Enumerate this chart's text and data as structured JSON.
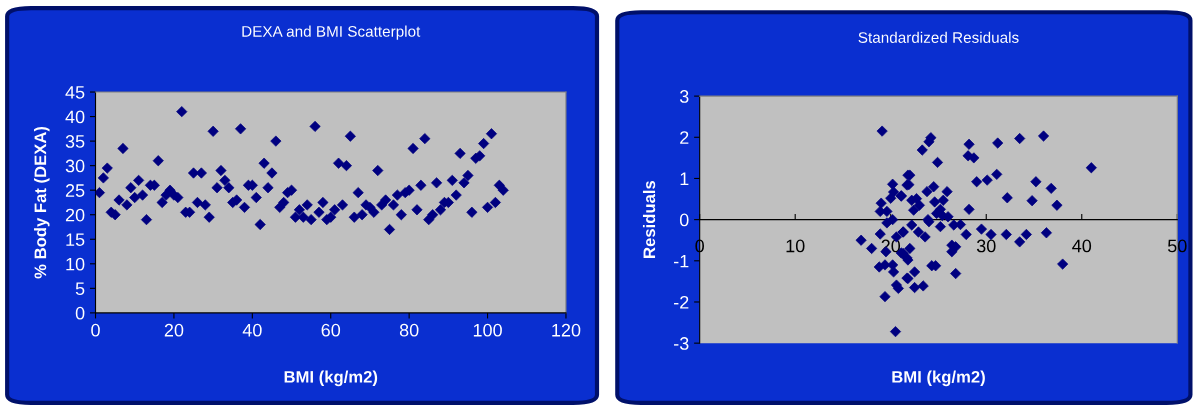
{
  "chart_data": [
    {
      "type": "scatter",
      "title": "DEXA and BMI Scatterplot",
      "xlabel": "BMI (kg/m2)",
      "ylabel": "% Body Fat (DEXA)",
      "xlim": [
        0,
        120
      ],
      "xticks": [
        0,
        20,
        40,
        60,
        80,
        100,
        120
      ],
      "ylim": [
        0,
        45
      ],
      "yticks": [
        0,
        5,
        10,
        15,
        20,
        25,
        30,
        35,
        40,
        45
      ],
      "marker": "diamond",
      "grid": false,
      "legend": false,
      "series": [
        {
          "color": "#000080",
          "x": [
            1,
            2,
            3,
            4,
            5,
            6,
            7,
            8,
            9,
            10,
            11,
            12,
            13,
            14,
            15,
            16,
            17,
            18,
            19,
            20,
            21,
            22,
            23,
            24,
            25,
            26,
            27,
            28,
            29,
            30,
            31,
            32,
            33,
            34,
            35,
            36,
            37,
            38,
            39,
            40,
            41,
            42,
            43,
            44,
            45,
            46,
            47,
            48,
            49,
            50,
            51,
            52,
            53,
            54,
            55,
            56,
            57,
            58,
            59,
            60,
            61,
            62,
            63,
            64,
            65,
            66,
            67,
            68,
            69,
            70,
            71,
            72,
            73,
            74,
            75,
            76,
            77,
            78,
            79,
            80,
            81,
            82,
            83,
            84,
            85,
            86,
            87,
            88,
            89,
            90,
            91,
            92,
            93,
            94,
            95,
            96,
            97,
            98,
            99,
            100,
            101,
            102,
            103,
            104
          ],
          "values": [
            24.5,
            27.5,
            29.5,
            20.5,
            20,
            23,
            33.5,
            22,
            25.5,
            23.5,
            27,
            24,
            19,
            26,
            26,
            31,
            22.5,
            24,
            25,
            24,
            23.5,
            41,
            20.5,
            20.5,
            28.5,
            22.5,
            28.5,
            22,
            19.5,
            37,
            25.5,
            29,
            27,
            25.5,
            22.5,
            23,
            37.5,
            21.5,
            26,
            26,
            23.5,
            18,
            30.5,
            25.5,
            28.5,
            35,
            21.5,
            22.5,
            24.5,
            25,
            19.5,
            21,
            19.5,
            22,
            19,
            38,
            20.5,
            22.5,
            19,
            19.5,
            21,
            30.5,
            22,
            30,
            36,
            19.5,
            24.5,
            20,
            22,
            21.5,
            20.5,
            29,
            22,
            23,
            17,
            22,
            24,
            20,
            24.5,
            25,
            33.5,
            21,
            26,
            35.5,
            19,
            20,
            26.5,
            21,
            22.5,
            22.5,
            27,
            24,
            32.5,
            26.5,
            28,
            20.5,
            31.5,
            32,
            34.5,
            21.5,
            36.5,
            22.5,
            26,
            25
          ]
        }
      ]
    },
    {
      "type": "scatter",
      "title": "Standardized Residuals",
      "xlabel": "BMI (kg/m2)",
      "ylabel": "Residuals",
      "xlim": [
        0,
        50
      ],
      "xticks": [
        0,
        10,
        20,
        30,
        40,
        50
      ],
      "ylim": [
        -3,
        3
      ],
      "yticks": [
        -3,
        -2,
        -1,
        0,
        1,
        2,
        3
      ],
      "marker": "diamond",
      "grid": false,
      "legend": false,
      "series": [
        {
          "color": "#000080",
          "x": [
            19.1,
            16.9,
            18.0,
            18.9,
            19.6,
            19.0,
            20.2,
            20.0,
            20.3,
            21.1,
            21.8,
            21.7,
            20.2,
            19.6,
            18.9,
            19.5,
            20.6,
            21.3,
            21.1,
            21.7,
            18.8,
            19.4,
            20.2,
            20.3,
            21.7,
            20.6,
            20.8,
            19.4,
            20.5,
            24.2,
            24.0,
            23.3,
            24.9,
            22.0,
            21.9,
            21.1,
            24.5,
            23.8,
            22.7,
            22.2,
            25.5,
            25.9,
            24.6,
            25.2,
            22.4,
            23.9,
            22.2,
            26.0,
            25.2,
            26.6,
            27.3,
            21.3,
            22.9,
            23.6,
            22.0,
            21.3,
            21.8,
            26.4,
            26.8,
            26.4,
            24.3,
            24.7,
            22.5,
            21.8,
            22.5,
            23.4,
            26.8,
            28.2,
            28.1,
            28.7,
            31.2,
            33.5,
            36.0,
            41.0,
            29.0,
            30.1,
            31.1,
            35.2,
            36.8,
            32.2,
            34.8,
            37.4,
            28.2,
            27.9,
            29.5,
            30.5,
            32.1,
            33.5,
            34.2,
            36.3,
            38.0,
            23.0,
            24.0,
            25.4,
            24.8
          ],
          "values": [
            2.15,
            -0.5,
            -0.7,
            0.2,
            0.2,
            0.4,
            0.86,
            0.52,
            0.67,
            0.58,
            1.08,
            0.84,
            0,
            -0.08,
            -0.35,
            -0.78,
            -0.42,
            -0.3,
            -0.81,
            -0.93,
            -1.15,
            -1.1,
            -1.1,
            -1.27,
            -1.42,
            -1.59,
            -1.67,
            -1.87,
            -2.72,
            1.99,
            1.89,
            1.69,
            1.39,
            1.08,
            0.85,
            0.57,
            0.8,
            0.68,
            0.51,
            0.47,
            0.47,
            0.68,
            0.43,
            0.25,
            0.23,
            0,
            -0.13,
            0.07,
            -0.17,
            -0.13,
            -0.12,
            -0.3,
            -0.3,
            -0.42,
            -0.7,
            -0.82,
            -0.98,
            -0.62,
            -0.66,
            -0.78,
            -1.12,
            -1.12,
            -1.27,
            -1.43,
            -1.65,
            -1.61,
            -1.31,
            1.83,
            1.55,
            1.5,
            1.86,
            1.97,
            2.03,
            1.26,
            0.92,
            0.96,
            1.1,
            0.92,
            0.76,
            0.53,
            0.46,
            0.35,
            0.25,
            -0.36,
            -0.23,
            -0.36,
            -0.36,
            -0.54,
            -0.36,
            -0.32,
            -1.08,
            0.35,
            -0.05,
            0.1,
            0.15
          ]
        }
      ]
    }
  ]
}
